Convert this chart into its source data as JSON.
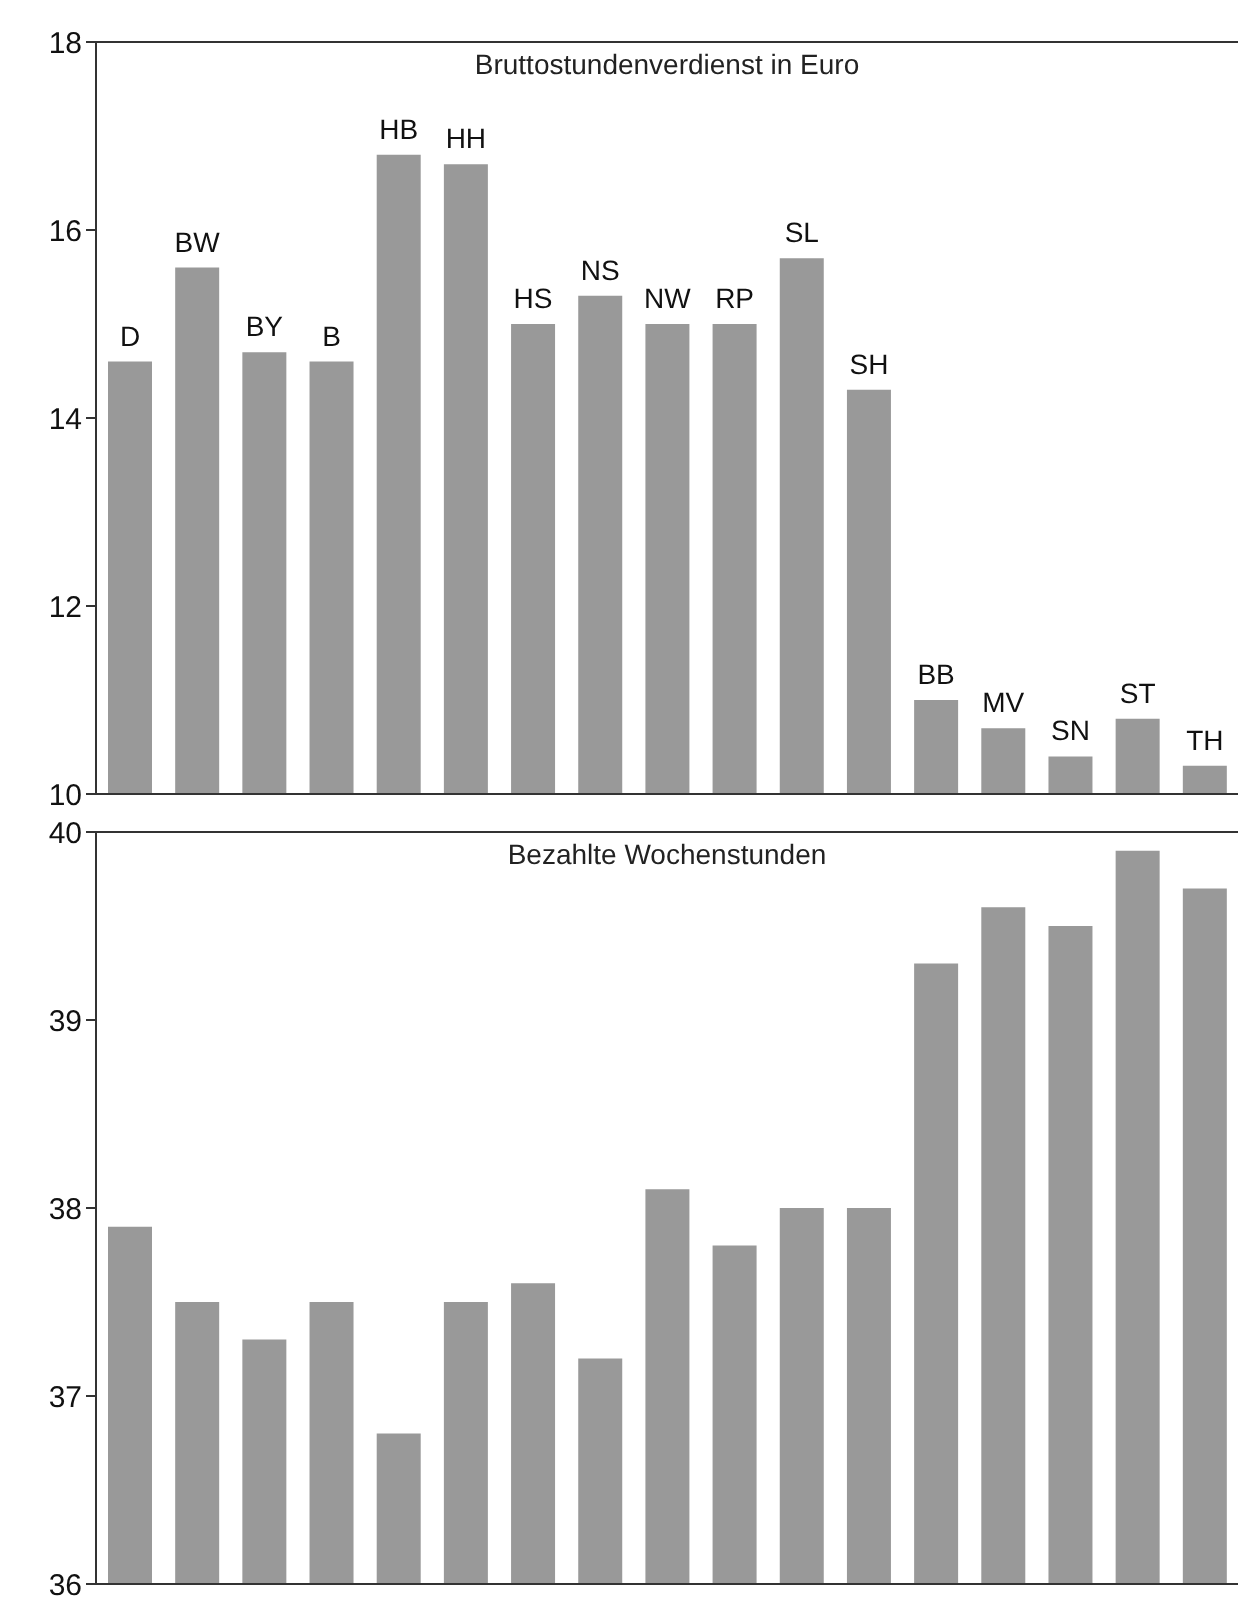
{
  "chart_data": [
    {
      "type": "bar",
      "title": "Bruttostundenverdienst in Euro",
      "categories": [
        "D",
        "BW",
        "BY",
        "B",
        "HB",
        "HH",
        "HS",
        "NS",
        "NW",
        "RP",
        "SL",
        "SH",
        "BB",
        "MV",
        "SN",
        "ST",
        "TH"
      ],
      "values": [
        14.6,
        15.6,
        14.7,
        14.6,
        16.8,
        16.7,
        15.0,
        15.3,
        15.0,
        15.0,
        15.7,
        14.3,
        11.0,
        10.7,
        10.4,
        10.8,
        10.3
      ],
      "color": "#999999",
      "ylim": [
        10,
        18
      ],
      "yticks": [
        10,
        12,
        14,
        16,
        18
      ],
      "tick_labels": "y"
    },
    {
      "type": "bar",
      "title": "Bezahlte Wochenstunden",
      "categories": [
        null,
        null,
        null,
        null,
        null,
        null,
        null,
        null,
        null,
        null,
        null,
        null,
        null,
        null,
        null,
        null,
        null
      ],
      "values": [
        37.9,
        37.5,
        37.3,
        37.5,
        36.8,
        37.5,
        37.6,
        37.2,
        38.1,
        37.8,
        38.0,
        38.0,
        39.3,
        39.6,
        39.5,
        39.9,
        39.7
      ],
      "color": "#999999",
      "ylim": [
        36,
        40
      ],
      "yticks": [
        36,
        37,
        38,
        39,
        40
      ],
      "tick_labels": "y"
    }
  ]
}
